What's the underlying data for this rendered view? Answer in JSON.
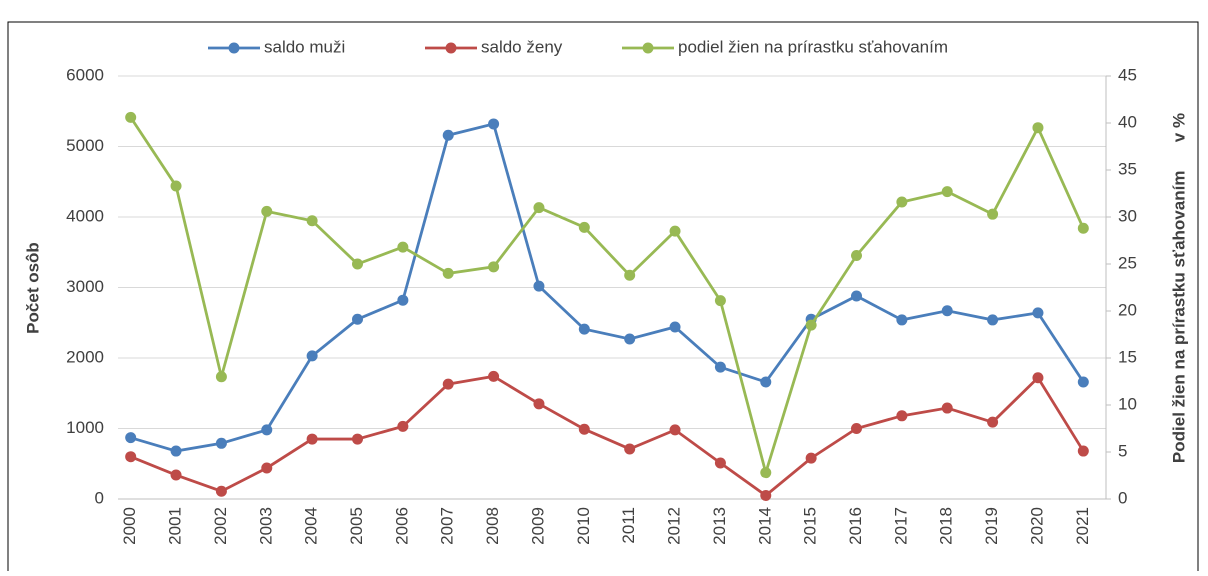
{
  "chart_data": {
    "type": "line",
    "categories": [
      "2000",
      "2001",
      "2002",
      "2003",
      "2004",
      "2005",
      "2006",
      "2007",
      "2008",
      "2009",
      "2010",
      "2011",
      "2012",
      "2013",
      "2014",
      "2015",
      "2016",
      "2017",
      "2018",
      "2019",
      "2020",
      "2021"
    ],
    "series": [
      {
        "name": "saldo muži",
        "color": "#4a7ebb",
        "values": [
          870,
          680,
          790,
          980,
          2030,
          2550,
          2820,
          5160,
          5320,
          3020,
          2410,
          2270,
          2440,
          1870,
          1660,
          2550,
          2880,
          2540,
          2670,
          2540,
          2640,
          1660
        ]
      },
      {
        "name": "saldo ženy",
        "color": "#be4b48",
        "values": [
          600,
          340,
          110,
          440,
          850,
          850,
          1030,
          1630,
          1740,
          1350,
          990,
          710,
          980,
          510,
          50,
          580,
          1000,
          1180,
          1290,
          1090,
          1720,
          680
        ]
      },
      {
        "name": "podiel žien na prírastku sťahovaním",
        "color": "#98b954",
        "axis": "y2",
        "values": [
          40.6,
          33.3,
          13.0,
          30.6,
          29.6,
          25.0,
          26.8,
          24.0,
          24.7,
          31.0,
          28.9,
          23.8,
          28.5,
          21.1,
          2.8,
          18.5,
          25.9,
          31.6,
          32.7,
          30.3,
          39.5,
          28.8
        ]
      }
    ],
    "ylabel": "Počet osôb",
    "y2label": "Podiel žien na prírastku sťahovaním      v %",
    "ylim": [
      0,
      6000
    ],
    "yticks": [
      0,
      1000,
      2000,
      3000,
      4000,
      5000,
      6000
    ],
    "y2lim": [
      0,
      45
    ],
    "y2ticks": [
      0,
      5,
      10,
      15,
      20,
      25,
      30,
      35,
      40,
      45
    ],
    "grid": true,
    "legend": "top"
  }
}
